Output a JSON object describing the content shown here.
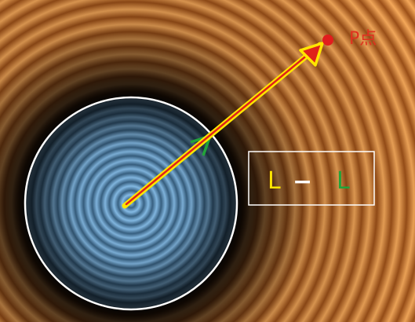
{
  "labels": {
    "point": "P点",
    "legend_left": "L",
    "legend_operator": "−",
    "legend_right": "L"
  },
  "colors": {
    "outer_wave_light": "#f3a455",
    "outer_wave_dark": "#a0551a",
    "inner_wave_light": "#7fb6e2",
    "inner_wave_dark": "#2c4a63",
    "circle_border": "#ffffff",
    "point": "#e11d1d",
    "point_label": "#e0321f",
    "long_arrow": "#ffe600",
    "short_arrow": "#22a33a",
    "long_arrow_inner": "#e0221a",
    "legend_left": "#ffe600",
    "legend_operator": "#ffffff",
    "legend_right": "#22a33a",
    "legend_border": "#ffffff"
  }
}
